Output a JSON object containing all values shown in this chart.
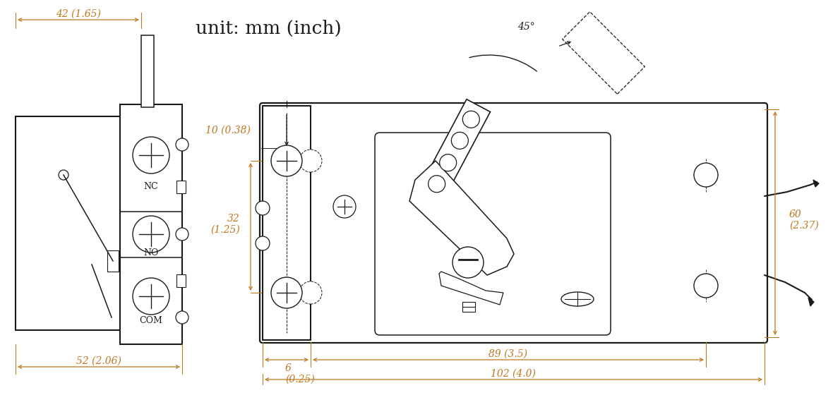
{
  "bg_color": "#ffffff",
  "line_color": "#1a1a1a",
  "dim_color": "#c07820",
  "title_text": "unit: mm (inch)",
  "dim_fontsize": 10,
  "label_fontsize": 9,
  "title_fontsize": 19,
  "figsize": [
    11.8,
    5.94
  ],
  "dpi": 100
}
